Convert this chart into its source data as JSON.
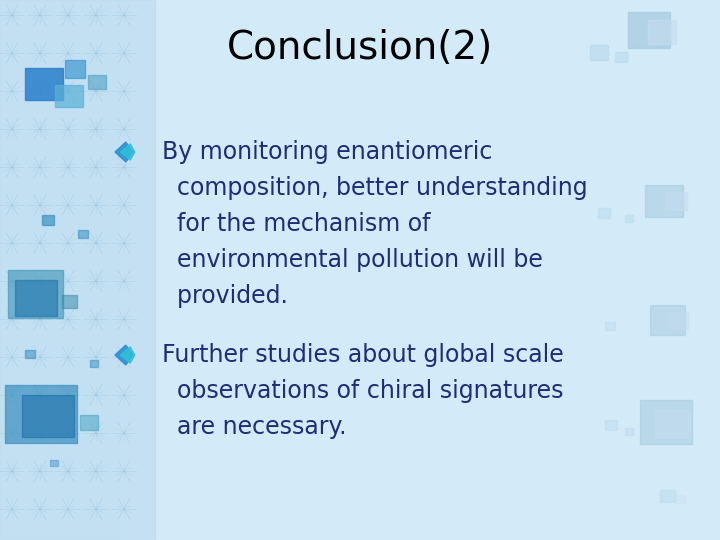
{
  "title": "Conclusion(2)",
  "title_color": "#000000",
  "title_fontsize": 28,
  "bg_color": "#cfe0f0",
  "center_bg_color": "#deeaf5",
  "bullet1_lines": [
    "By monitoring enantiomeric",
    "  composition, better understanding",
    "  for the mechanism of",
    "  environmental pollution will be",
    "  provided."
  ],
  "bullet2_lines": [
    "Further studies about global scale",
    "  observations of chiral signatures",
    "  are necessary."
  ],
  "bullet_color": "#1e2d78",
  "bullet_fontsize": 17,
  "arrow_color1": "#1a7abf",
  "arrow_color2": "#44c8d8",
  "left_pattern_color": "#a8cce0",
  "left_sq_colors": [
    "#1a6faa",
    "#3399cc",
    "#6ab8d8",
    "#1a6faa",
    "#3399cc"
  ],
  "right_sq_colors": [
    "#a8cce0",
    "#c5ddf0",
    "#ddeef8"
  ]
}
